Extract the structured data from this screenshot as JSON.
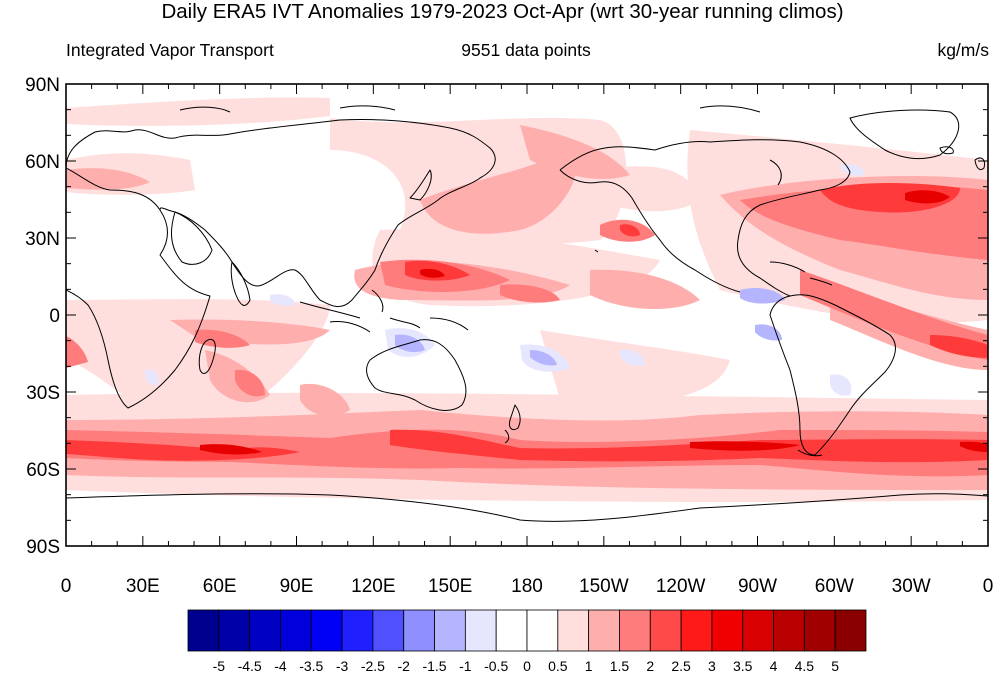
{
  "title": "Daily ERA5 IVT Anomalies 1979-2023 Oct-Apr (wrt 30-year running climos)",
  "subtitle_left": "Integrated Vapor Transport",
  "subtitle_center": "9551 data points",
  "subtitle_right": "kg/m/s",
  "lat_labels": [
    "90N",
    "60N",
    "30N",
    "0",
    "30S",
    "60S",
    "90S"
  ],
  "lon_labels": [
    "0",
    "30E",
    "60E",
    "90E",
    "120E",
    "150E",
    "180",
    "150W",
    "120W",
    "90W",
    "60W",
    "30W",
    "0"
  ],
  "colorbar": {
    "labels": [
      "-5",
      "-4.5",
      "-4",
      "-3.5",
      "-3",
      "-2.5",
      "-2",
      "-1.5",
      "-1",
      "-0.5",
      "0",
      "0.5",
      "1",
      "1.5",
      "2",
      "2.5",
      "3",
      "3.5",
      "4",
      "4.5",
      "5"
    ],
    "colors": [
      "#00008f",
      "#0000a8",
      "#0000c2",
      "#0000dc",
      "#0000f5",
      "#2020ff",
      "#5050ff",
      "#8e8eff",
      "#b4b4ff",
      "#e6e6ff",
      "#ffffff",
      "#ffffff",
      "#ffdede",
      "#ffaeae",
      "#ff7c7c",
      "#ff4a4a",
      "#ff1a1a",
      "#f00000",
      "#d80000",
      "#b80000",
      "#a00000",
      "#8a0000"
    ]
  },
  "colors": {
    "anomaly_weak": "#ffdede",
    "anomaly_light": "#ffaeae",
    "anomaly_mid": "#ff7c7c",
    "anomaly_strong": "#ff4a4a",
    "anomaly_max": "#f00000",
    "negative_light": "#e6e6ff",
    "negative_mid": "#b4b4ff",
    "negative_strong": "#8e8eff"
  }
}
